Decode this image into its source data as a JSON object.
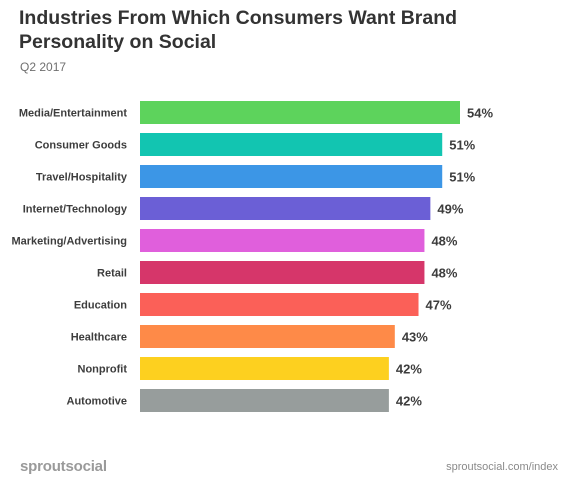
{
  "header": {
    "title": "Industries From Which Consumers Want Brand Personality on Social",
    "subtitle": "Q2 2017"
  },
  "footer": {
    "logo": "sproutsocial",
    "url": "sproutsocial.com/index"
  },
  "chart_data": {
    "type": "bar",
    "orientation": "horizontal",
    "title": "Industries From Which Consumers Want Brand Personality on Social",
    "subtitle": "Q2 2017",
    "categories": [
      "Media/Entertainment",
      "Consumer Goods",
      "Travel/Hospitality",
      "Internet/Technology",
      "Marketing/Advertising",
      "Retail",
      "Education",
      "Healthcare",
      "Nonprofit",
      "Automotive"
    ],
    "values": [
      54,
      51,
      51,
      49,
      48,
      48,
      47,
      43,
      42,
      42
    ],
    "value_labels": [
      "54%",
      "51%",
      "51%",
      "49%",
      "48%",
      "48%",
      "47%",
      "43%",
      "42%",
      "42%"
    ],
    "colors": [
      "#5dd35c",
      "#12c5b1",
      "#3c96e6",
      "#6b5fd6",
      "#e05fdc",
      "#d6366a",
      "#fb6058",
      "#fe8a48",
      "#fdd01f",
      "#979d9c"
    ],
    "xlim": [
      0,
      54
    ],
    "grid": false,
    "legend": "none"
  }
}
